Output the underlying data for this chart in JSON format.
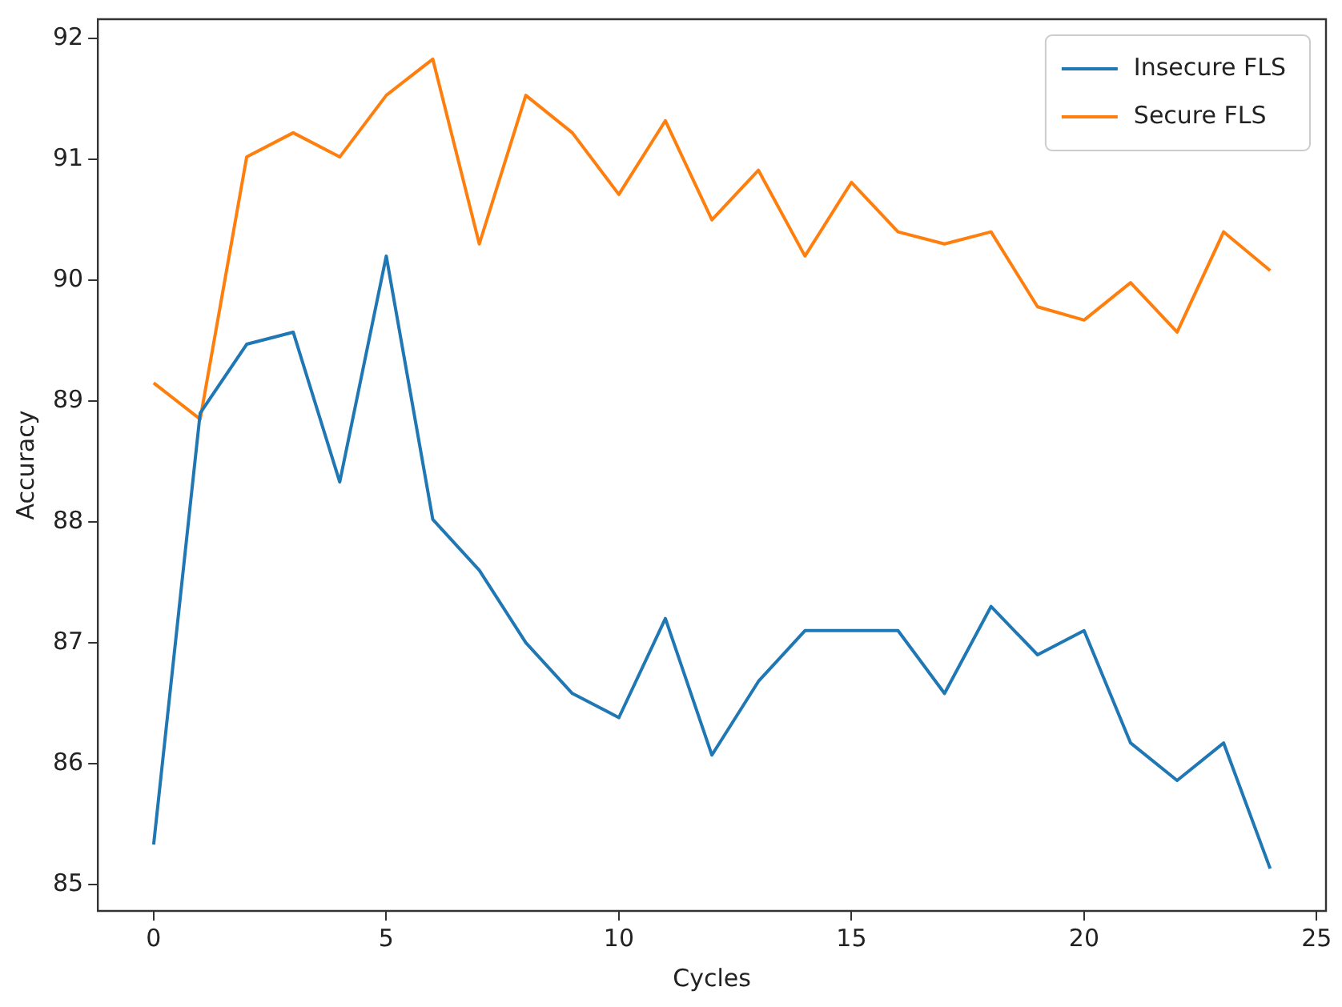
{
  "chart_data": {
    "type": "line",
    "xlabel": "Cycles",
    "ylabel": "Accuracy",
    "x": [
      0,
      1,
      2,
      3,
      4,
      5,
      6,
      7,
      8,
      9,
      10,
      11,
      12,
      13,
      14,
      15,
      16,
      17,
      18,
      19,
      20,
      21,
      22,
      23,
      24
    ],
    "series": [
      {
        "name": "Insecure FLS",
        "color": "#1f77b4",
        "values": [
          85.33,
          88.9,
          89.47,
          89.57,
          88.33,
          90.2,
          88.02,
          87.6,
          87.0,
          86.58,
          86.38,
          87.2,
          86.07,
          86.68,
          87.1,
          87.1,
          87.1,
          86.58,
          87.3,
          86.9,
          87.1,
          86.17,
          85.86,
          86.17,
          85.13
        ]
      },
      {
        "name": "Secure FLS",
        "color": "#ff7f0e",
        "values": [
          89.15,
          88.85,
          91.02,
          91.22,
          91.02,
          91.53,
          91.83,
          90.3,
          91.53,
          91.22,
          90.71,
          91.32,
          90.5,
          90.91,
          90.2,
          90.81,
          90.4,
          90.3,
          90.4,
          89.78,
          89.67,
          89.98,
          89.57,
          90.4,
          90.08
        ]
      }
    ],
    "xlim": [
      -1.2,
      25.2
    ],
    "xticks": [
      0,
      5,
      10,
      15,
      20,
      25
    ],
    "ylim": [
      84.78,
      92.16
    ],
    "yticks": [
      85,
      86,
      87,
      88,
      89,
      90,
      91,
      92
    ],
    "grid": false,
    "legend": "top right",
    "marker": "none",
    "line_style": "solid"
  }
}
